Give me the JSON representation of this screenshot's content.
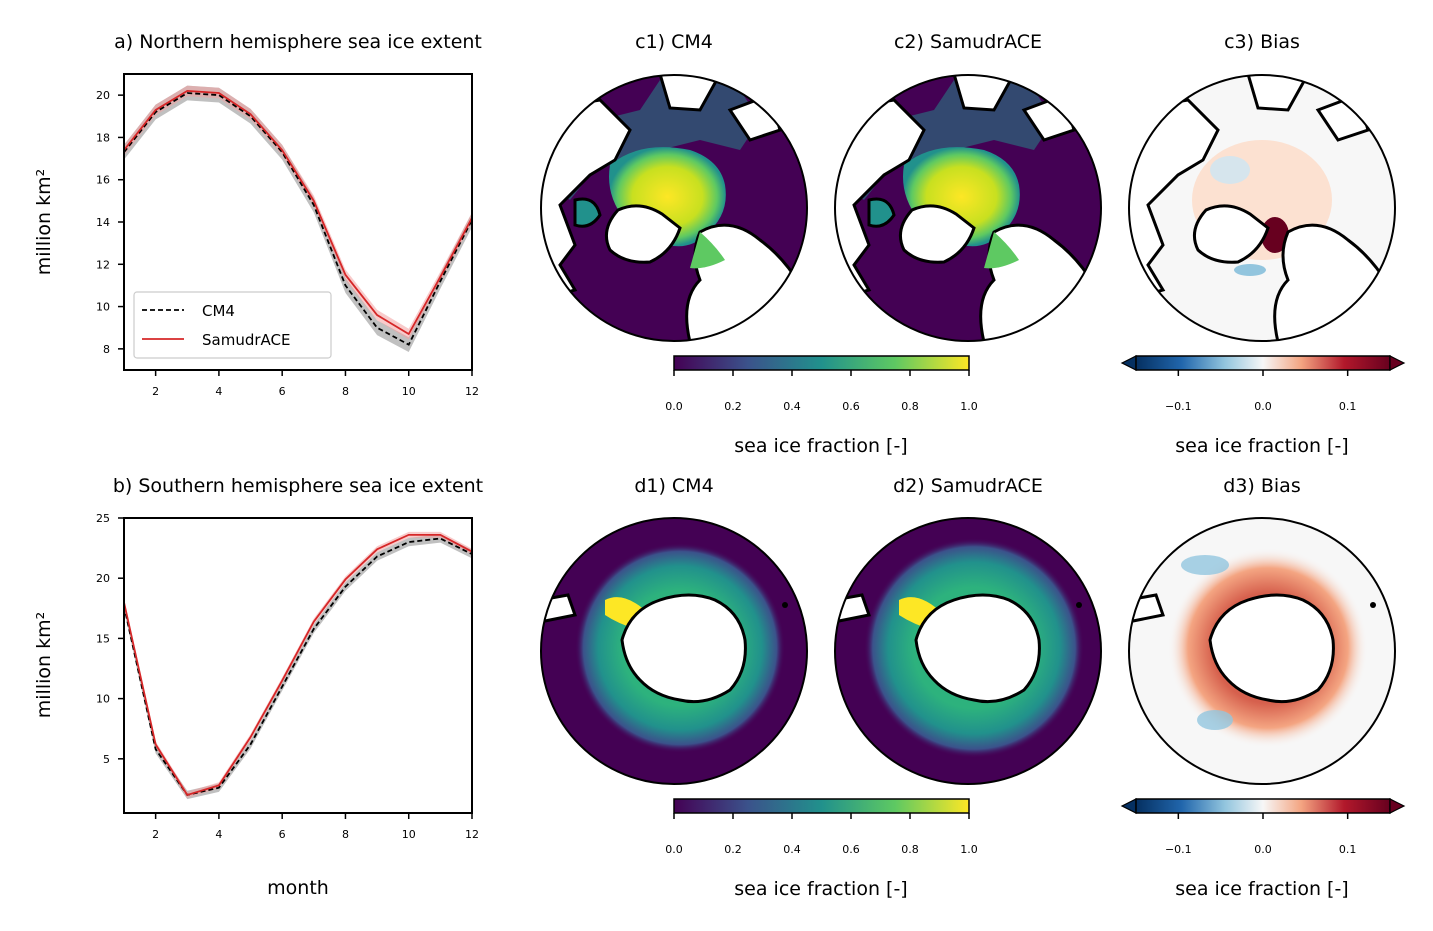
{
  "chart_data": [
    {
      "type": "line",
      "id": "a",
      "title": "a) Northern hemisphere sea ice extent",
      "xlabel": "",
      "ylabel": "million km²",
      "xlim": [
        1,
        12
      ],
      "ylim": [
        7,
        21
      ],
      "xticks": [
        2,
        4,
        6,
        8,
        10,
        12
      ],
      "yticks": [
        8,
        10,
        12,
        14,
        16,
        18,
        20
      ],
      "x": [
        1,
        2,
        3,
        4,
        5,
        6,
        7,
        8,
        9,
        10,
        11,
        12
      ],
      "series": [
        {
          "name": "CM4",
          "color": "#000000",
          "style": "dashed",
          "values": [
            17.3,
            19.2,
            20.1,
            20.0,
            19.0,
            17.3,
            14.8,
            11.0,
            9.0,
            8.2,
            11.2,
            14.1
          ]
        },
        {
          "name": "SamudrACE",
          "color": "#d62728",
          "style": "solid",
          "values": [
            17.4,
            19.3,
            20.2,
            20.1,
            19.1,
            17.4,
            15.0,
            11.5,
            9.6,
            8.7,
            11.4,
            14.2
          ]
        }
      ],
      "legend": [
        "CM4",
        "SamudrACE"
      ],
      "legend_position": "lower-left"
    },
    {
      "type": "line",
      "id": "b",
      "title": "b) Southern hemisphere sea ice extent",
      "xlabel": "month",
      "ylabel": "million km²",
      "xlim": [
        1,
        12
      ],
      "ylim": [
        0.5,
        25
      ],
      "xticks": [
        2,
        4,
        6,
        8,
        10,
        12
      ],
      "yticks": [
        5,
        10,
        15,
        20,
        25
      ],
      "x": [
        1,
        2,
        3,
        4,
        5,
        6,
        7,
        8,
        9,
        10,
        11,
        12
      ],
      "series": [
        {
          "name": "CM4",
          "color": "#000000",
          "style": "dashed",
          "values": [
            17.7,
            5.8,
            2.0,
            2.6,
            6.2,
            11.0,
            15.8,
            19.3,
            21.8,
            23.0,
            23.3,
            22.0
          ]
        },
        {
          "name": "SamudrACE",
          "color": "#d62728",
          "style": "solid",
          "values": [
            18.0,
            6.2,
            2.0,
            2.8,
            6.8,
            11.5,
            16.4,
            19.9,
            22.4,
            23.6,
            23.6,
            22.2
          ]
        }
      ]
    },
    {
      "type": "heatmap",
      "id": "c1",
      "title": "c1) CM4",
      "projection": "north-polar"
    },
    {
      "type": "heatmap",
      "id": "c2",
      "title": "c2) SamudrACE",
      "projection": "north-polar"
    },
    {
      "type": "heatmap",
      "id": "c3",
      "title": "c3) Bias",
      "projection": "north-polar"
    },
    {
      "type": "heatmap",
      "id": "d1",
      "title": "d1) CM4",
      "projection": "south-polar"
    },
    {
      "type": "heatmap",
      "id": "d2",
      "title": "d2) SamudrACE",
      "projection": "south-polar"
    },
    {
      "type": "heatmap",
      "id": "d3",
      "title": "d3) Bias",
      "projection": "south-polar"
    }
  ],
  "colorbars": {
    "fraction": {
      "label": "sea ice fraction [-]",
      "range": [
        0,
        1
      ],
      "ticks": [
        "0.0",
        "0.2",
        "0.4",
        "0.6",
        "0.8",
        "1.0"
      ],
      "colormap": [
        "#440154",
        "#3b528b",
        "#21918c",
        "#5ec962",
        "#fde725"
      ]
    },
    "bias": {
      "label": "sea ice fraction [-]",
      "range": [
        -0.15,
        0.15
      ],
      "ticks": [
        "−0.1",
        "0.0",
        "0.1"
      ],
      "colormap": [
        "#053061",
        "#2166ac",
        "#92c5de",
        "#f7f7f7",
        "#f4a582",
        "#b2182b",
        "#67001f"
      ]
    }
  },
  "colors": {
    "land": "#ffffff",
    "ocean_zero": "#440154",
    "coast": "#000000",
    "band": "#b5b5b5",
    "band_red": "#f2a0a0"
  }
}
